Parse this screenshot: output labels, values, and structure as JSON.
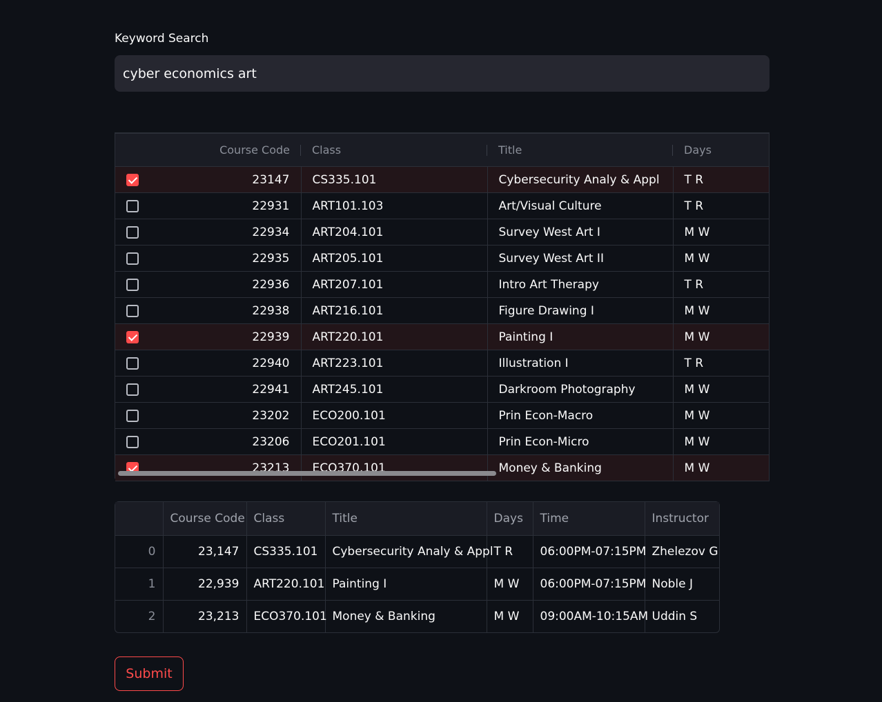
{
  "search": {
    "label": "Keyword Search",
    "value": "cyber economics art"
  },
  "editor": {
    "columns": [
      "Course Code",
      "Class",
      "Title",
      "Days"
    ],
    "rows": [
      {
        "checked": true,
        "code": "23147",
        "class": "CS335.101",
        "title": "Cybersecurity Analy & Appl",
        "days": "T R"
      },
      {
        "checked": false,
        "code": "22931",
        "class": "ART101.103",
        "title": "Art/Visual Culture",
        "days": "T R"
      },
      {
        "checked": false,
        "code": "22934",
        "class": "ART204.101",
        "title": "Survey West Art I",
        "days": "M W"
      },
      {
        "checked": false,
        "code": "22935",
        "class": "ART205.101",
        "title": "Survey West Art II",
        "days": "M W"
      },
      {
        "checked": false,
        "code": "22936",
        "class": "ART207.101",
        "title": "Intro Art Therapy",
        "days": "T R"
      },
      {
        "checked": false,
        "code": "22938",
        "class": "ART216.101",
        "title": "Figure Drawing I",
        "days": "M W"
      },
      {
        "checked": true,
        "code": "22939",
        "class": "ART220.101",
        "title": "Painting I",
        "days": "M W"
      },
      {
        "checked": false,
        "code": "22940",
        "class": "ART223.101",
        "title": "Illustration I",
        "days": "T R"
      },
      {
        "checked": false,
        "code": "22941",
        "class": "ART245.101",
        "title": "Darkroom Photography",
        "days": "M W"
      },
      {
        "checked": false,
        "code": "23202",
        "class": "ECO200.101",
        "title": "Prin Econ-Macro",
        "days": "M W"
      },
      {
        "checked": false,
        "code": "23206",
        "class": "ECO201.101",
        "title": "Prin Econ-Micro",
        "days": "M W"
      },
      {
        "checked": true,
        "code": "23213",
        "class": "ECO370.101",
        "title": "Money & Banking",
        "days": "M W"
      }
    ]
  },
  "result": {
    "columns": [
      "",
      "Course Code",
      "Class",
      "Title",
      "Days",
      "Time",
      "Instructor"
    ],
    "rows": [
      {
        "index": "0",
        "code": "23,147",
        "class": "CS335.101",
        "title": "Cybersecurity Analy & Appl",
        "days": "T R",
        "time": "06:00PM-07:15PM",
        "instructor": "Zhelezov G"
      },
      {
        "index": "1",
        "code": "22,939",
        "class": "ART220.101",
        "title": "Painting I",
        "days": "M W",
        "time": "06:00PM-07:15PM",
        "instructor": "Noble J"
      },
      {
        "index": "2",
        "code": "23,213",
        "class": "ECO370.101",
        "title": "Money & Banking",
        "days": "M W",
        "time": "09:00AM-10:15AM",
        "instructor": "Uddin S"
      }
    ]
  },
  "submit": {
    "label": "Submit"
  },
  "colors": {
    "background": "#0e1117",
    "accent": "#ff4b4b",
    "input_bg": "#262730"
  }
}
